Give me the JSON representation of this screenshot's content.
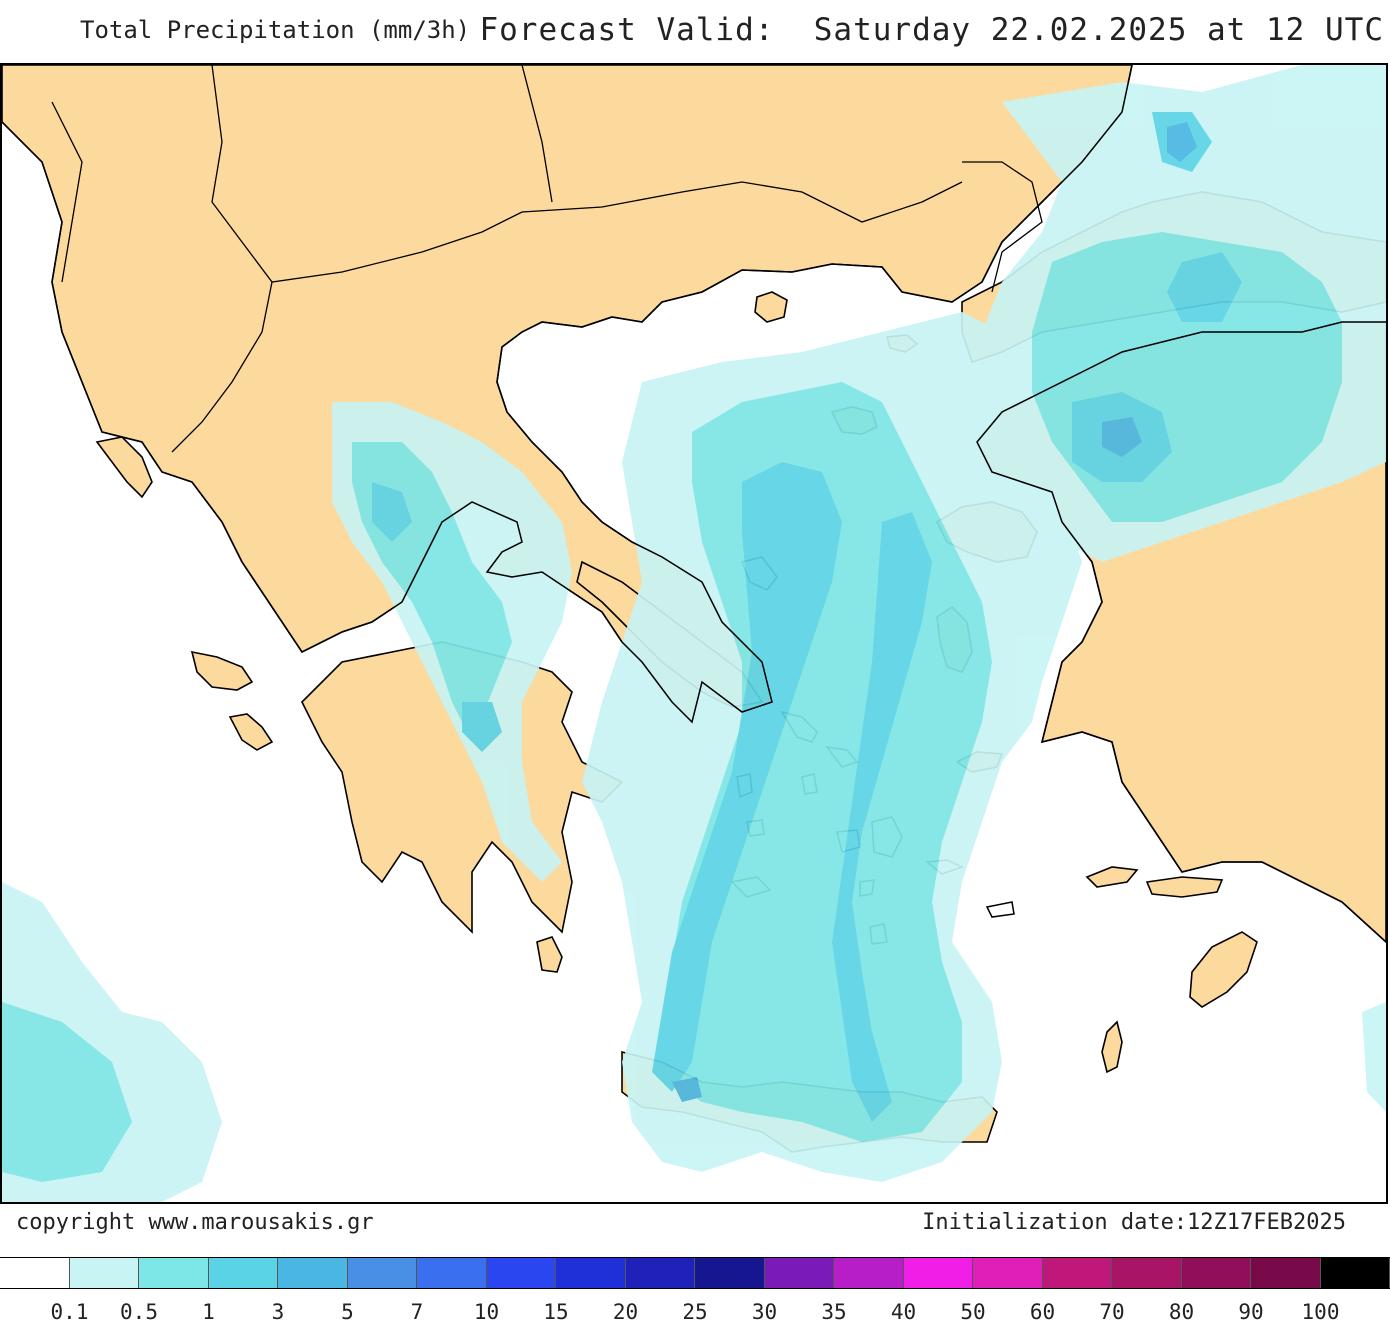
{
  "header": {
    "title": "Total Precipitation (mm/3h)",
    "forecast": "Forecast Valid:  Saturday 22.02.2025 at 12 UTC"
  },
  "footer": {
    "copyright": "copyright www.marousakis.gr",
    "init": "Initialization date:12Z17FEB2025"
  },
  "map": {
    "land_color": "#fcd99d",
    "sea_color": "#ffffff",
    "border_color": "#000000"
  },
  "legend": {
    "colors": [
      "#ffffff",
      "#c8f4f4",
      "#7de6e6",
      "#5bd3e6",
      "#4ab6e2",
      "#4a8fe6",
      "#3a6ff0",
      "#2a46f0",
      "#2030d8",
      "#1e22b8",
      "#161690",
      "#7a1ab8",
      "#b81ec8",
      "#f01ee6",
      "#e01eb8",
      "#c0187a",
      "#a81466",
      "#900e5a",
      "#780a4a",
      "#000000"
    ],
    "labels": [
      "0.1",
      "0.5",
      "1",
      "3",
      "5",
      "7",
      "10",
      "15",
      "20",
      "25",
      "30",
      "35",
      "40",
      "50",
      "60",
      "70",
      "80",
      "90",
      "100"
    ]
  }
}
